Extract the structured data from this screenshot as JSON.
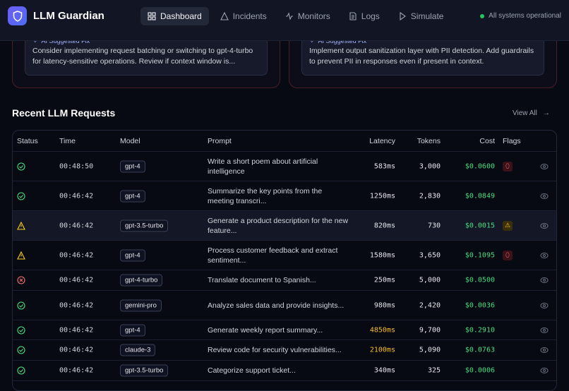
{
  "header": {
    "brand": "LLM Guardian",
    "nav": [
      {
        "label": "Dashboard",
        "icon": "grid-icon",
        "active": true
      },
      {
        "label": "Incidents",
        "icon": "alert-triangle-icon"
      },
      {
        "label": "Monitors",
        "icon": "activity-icon"
      },
      {
        "label": "Logs",
        "icon": "file-text-icon"
      },
      {
        "label": "Simulate",
        "icon": "play-icon"
      }
    ],
    "status": "All systems operational"
  },
  "incidents": [
    {
      "fix_title": "AI Suggested Fix",
      "fix_text": "Consider implementing request batching or switching to gpt-4-turbo for latency-sensitive operations. Review if context window is..."
    },
    {
      "fix_title": "AI Suggested Fix",
      "fix_text": "Implement output sanitization layer with PII detection. Add guardrails to prevent PII in responses even if present in context."
    }
  ],
  "requests": {
    "title": "Recent LLM Requests",
    "view_all": "View All",
    "columns": [
      "Status",
      "Time",
      "Model",
      "Prompt",
      "Latency",
      "Tokens",
      "Cost",
      "Flags"
    ],
    "rows": [
      {
        "status": "success",
        "time": "00:48:50",
        "model": "gpt-4",
        "prompt": "Write a short poem about artificial intelligence",
        "latency": "583ms",
        "tokens": "3,000",
        "cost": "$0.0600",
        "flag": "shield"
      },
      {
        "status": "success",
        "time": "00:46:42",
        "model": "gpt-4",
        "prompt": "Summarize the key points from the meeting transcri...",
        "latency": "1250ms",
        "tokens": "2,830",
        "cost": "$0.0849",
        "flag": ""
      },
      {
        "status": "warning",
        "time": "00:46:42",
        "model": "gpt-3.5-turbo",
        "prompt": "Generate a product description for the new feature...",
        "latency": "820ms",
        "tokens": "730",
        "cost": "$0.0015",
        "flag": "warning"
      },
      {
        "status": "warning",
        "time": "00:46:42",
        "model": "gpt-4",
        "prompt": "Process customer feedback and extract sentiment...",
        "latency": "1580ms",
        "tokens": "3,650",
        "cost": "$0.1095",
        "flag": "shield"
      },
      {
        "status": "error",
        "time": "00:46:42",
        "model": "gpt-4-turbo",
        "prompt": "Translate document to Spanish...",
        "latency": "250ms",
        "tokens": "5,000",
        "cost": "$0.0500",
        "flag": ""
      },
      {
        "status": "success",
        "time": "00:46:42",
        "model": "gemini-pro",
        "prompt": "Analyze sales data and provide insights...",
        "latency": "980ms",
        "tokens": "2,420",
        "cost": "$0.0036",
        "flag": ""
      },
      {
        "status": "success",
        "time": "00:46:42",
        "model": "gpt-4",
        "prompt": "Generate weekly report summary...",
        "latency": "4850ms",
        "tokens": "9,700",
        "cost": "$0.2910",
        "flag": "",
        "slow": true
      },
      {
        "status": "success",
        "time": "00:46:42",
        "model": "claude-3",
        "prompt": "Review code for security vulnerabilities...",
        "latency": "2100ms",
        "tokens": "5,090",
        "cost": "$0.0763",
        "flag": "",
        "slow": true
      },
      {
        "status": "success",
        "time": "00:46:42",
        "model": "gpt-3.5-turbo",
        "prompt": "Categorize support ticket...",
        "latency": "340ms",
        "tokens": "325",
        "cost": "$0.0006",
        "flag": ""
      }
    ]
  },
  "colors": {
    "success": "#4ade80",
    "warning": "#facc15",
    "error": "#f87171",
    "cost": "#4ade80",
    "slow": "#fbbf24",
    "accent": "#6d5cf6"
  }
}
